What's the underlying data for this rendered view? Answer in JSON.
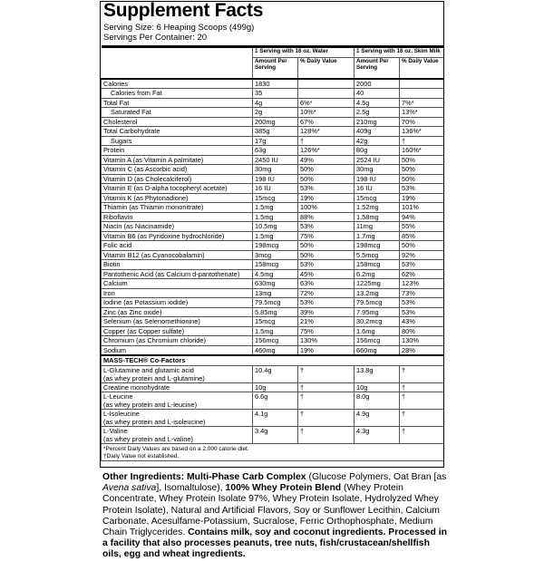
{
  "title": "Supplement Facts",
  "serving_size": "Serving Size: 6 Heaping Scoops (499g)",
  "servings_per_container": "Servings Per Container: 20",
  "columns": [
    {
      "heading": "1 Serving with 16 oz. Water",
      "amount": "Amount Per Serving",
      "dv": "% Daily Value"
    },
    {
      "heading": "1 Serving with 16 oz. Skim Milk",
      "amount": "Amount Per Serving",
      "dv": "% Daily Value"
    }
  ],
  "rows": [
    {
      "label": "Calories",
      "values": [
        "1830",
        "",
        "2000",
        ""
      ]
    },
    {
      "label": "Calories from Fat",
      "indent": true,
      "values": [
        "35",
        "",
        "40",
        ""
      ]
    },
    {
      "label": "Total Fat",
      "values": [
        "4g",
        "6%*",
        "4.5g",
        "7%*"
      ]
    },
    {
      "label": "Saturated Fat",
      "indent": true,
      "values": [
        "2g",
        "10%*",
        "2.5g",
        "13%*"
      ]
    },
    {
      "label": "Cholesterol",
      "values": [
        "200mg",
        "67%",
        "210mg",
        "70%"
      ]
    },
    {
      "label": "Total Carbohydrate",
      "values": [
        "385g",
        "128%*",
        "409g",
        "136%*"
      ]
    },
    {
      "label": "Sugars",
      "indent": true,
      "values": [
        "17g",
        "†",
        "42g",
        "†"
      ]
    },
    {
      "label": "Protein",
      "values": [
        "63g",
        "126%*",
        "80g",
        "160%*"
      ]
    },
    {
      "label": "Vitamin A (as Vitamin A palmitate)",
      "values": [
        "2450 IU",
        "49%",
        "2524 IU",
        "50%"
      ]
    },
    {
      "label": "Vitamin C (as Ascorbic acid)",
      "values": [
        "30mg",
        "50%",
        "30mg",
        "50%"
      ]
    },
    {
      "label": "Vitamin D (as Cholecalciferol)",
      "values": [
        "198 IU",
        "50%",
        "198 IU",
        "50%"
      ]
    },
    {
      "label": "Vitamin E (as D-alpha tocopheryl acetate)",
      "values": [
        "16 IU",
        "53%",
        "16 IU",
        "53%"
      ]
    },
    {
      "label": "Vitamin K (as Phytonadione)",
      "values": [
        "15mcg",
        "19%",
        "15mcg",
        "19%"
      ]
    },
    {
      "label": "Thiamin (as Thiamin mononitrate)",
      "values": [
        "1.5mg",
        "100%",
        "1.52mg",
        "101%"
      ]
    },
    {
      "label": "Riboflavin",
      "values": [
        "1.5mg",
        "88%",
        "1.58mg",
        "94%"
      ]
    },
    {
      "label": "Niacin (as Niacinamide)",
      "values": [
        "10.5mg",
        "53%",
        "11mg",
        "55%"
      ]
    },
    {
      "label": "Vitamin B6 (as Pyridoxine hydrochloride)",
      "values": [
        "1.5mg",
        "75%",
        "1.7mg",
        "85%"
      ]
    },
    {
      "label": "Folic acid",
      "values": [
        "198mcg",
        "50%",
        "198mcg",
        "50%"
      ]
    },
    {
      "label": "Vitamin B12 (as Cyanocobalamin)",
      "values": [
        "3mcg",
        "50%",
        "5.5mcg",
        "92%"
      ]
    },
    {
      "label": "Biotin",
      "values": [
        "158mcg",
        "53%",
        "158mcg",
        "53%"
      ]
    },
    {
      "label": "Pantothenic Acid (as Calcium d-pantothenate)",
      "values": [
        "4.5mg",
        "45%",
        "6.2mg",
        "62%"
      ]
    },
    {
      "label": "Calcium",
      "values": [
        "630mg",
        "63%",
        "1225mg",
        "123%"
      ]
    },
    {
      "label": "Iron",
      "values": [
        "13mg",
        "72%",
        "13.2mg",
        "73%"
      ]
    },
    {
      "label": "Iodine (as Potassium iodide)",
      "values": [
        "79.5mcg",
        "53%",
        "79.5mcg",
        "53%"
      ]
    },
    {
      "label": "Zinc (as Zinc oxide)",
      "values": [
        "5.85mg",
        "39%",
        "7.95mg",
        "53%"
      ]
    },
    {
      "label": "Selenium (as Selenomethionine)",
      "values": [
        "15mcg",
        "21%",
        "30.2mcg",
        "43%"
      ]
    },
    {
      "label": "Copper (as Copper sulfate)",
      "values": [
        "1.5mg",
        "75%",
        "1.6mg",
        "80%"
      ]
    },
    {
      "label": "Chromium (as Chromium chloride)",
      "values": [
        "156mcg",
        "130%",
        "156mcg",
        "130%"
      ]
    },
    {
      "label": "Sodium",
      "values": [
        "460mg",
        "19%",
        "660mg",
        "28%"
      ]
    }
  ],
  "cofactors_title": "MASS-TECH® Co-Factors",
  "cofactors": [
    {
      "label": [
        "L-Glutamine and glutamic acid",
        "(as whey protein and L-glutamine)"
      ],
      "values": [
        "10.4g",
        "†",
        "13.8g",
        "†"
      ]
    },
    {
      "label": [
        "Creatine monohydrate"
      ],
      "values": [
        "10g",
        "†",
        "10g",
        "†"
      ]
    },
    {
      "label": [
        "L-Leucine",
        "(as whey protein and L-leucine)"
      ],
      "values": [
        "6.6g",
        "†",
        "8.0g",
        "†"
      ]
    },
    {
      "label": [
        "L-Isoleucine",
        "(as whey protein and L-isoleucine)"
      ],
      "values": [
        "4.1g",
        "†",
        "4.9g",
        "†"
      ]
    },
    {
      "label": [
        "L-Valine",
        "(as whey protein and L-valine)"
      ],
      "values": [
        "3.4g",
        "†",
        "4.3g",
        "†"
      ]
    }
  ],
  "footnotes": [
    "*Percent Daily Values are based on a 2,000 calorie diet.",
    "†Daily Value not established."
  ],
  "other_ingredients": [
    {
      "text": "Other Ingredients: Multi-Phase Carb Complex",
      "style": "bold"
    },
    {
      "text": " (Glucose Polymers, Oat Bran [as ",
      "style": "normal"
    },
    {
      "text": "Avena sativa",
      "style": "italic"
    },
    {
      "text": "], Isomaltulose), ",
      "style": "normal"
    },
    {
      "text": "100% Whey Protein Blend",
      "style": "bold"
    },
    {
      "text": " (Whey Protein Concentrate, Whey Protein Isolate 97%, Whey Protein Isolate, Hydrolyzed Whey Protein Isolate), Natural and Artificial Flavors, Soy or Sunflower Lecithin, Calcium Carbonate, Acesulfame-Potassium, Sucralose, Ferric Orthophosphate, Medium Chain Triglycerides. ",
      "style": "normal"
    },
    {
      "text": "Contains milk, soy and coconut ingredients. Processed in a facility that also processes peanuts, tree nuts, fish/crustacean/shellfish oils, egg and wheat ingredients.",
      "style": "bold"
    }
  ]
}
